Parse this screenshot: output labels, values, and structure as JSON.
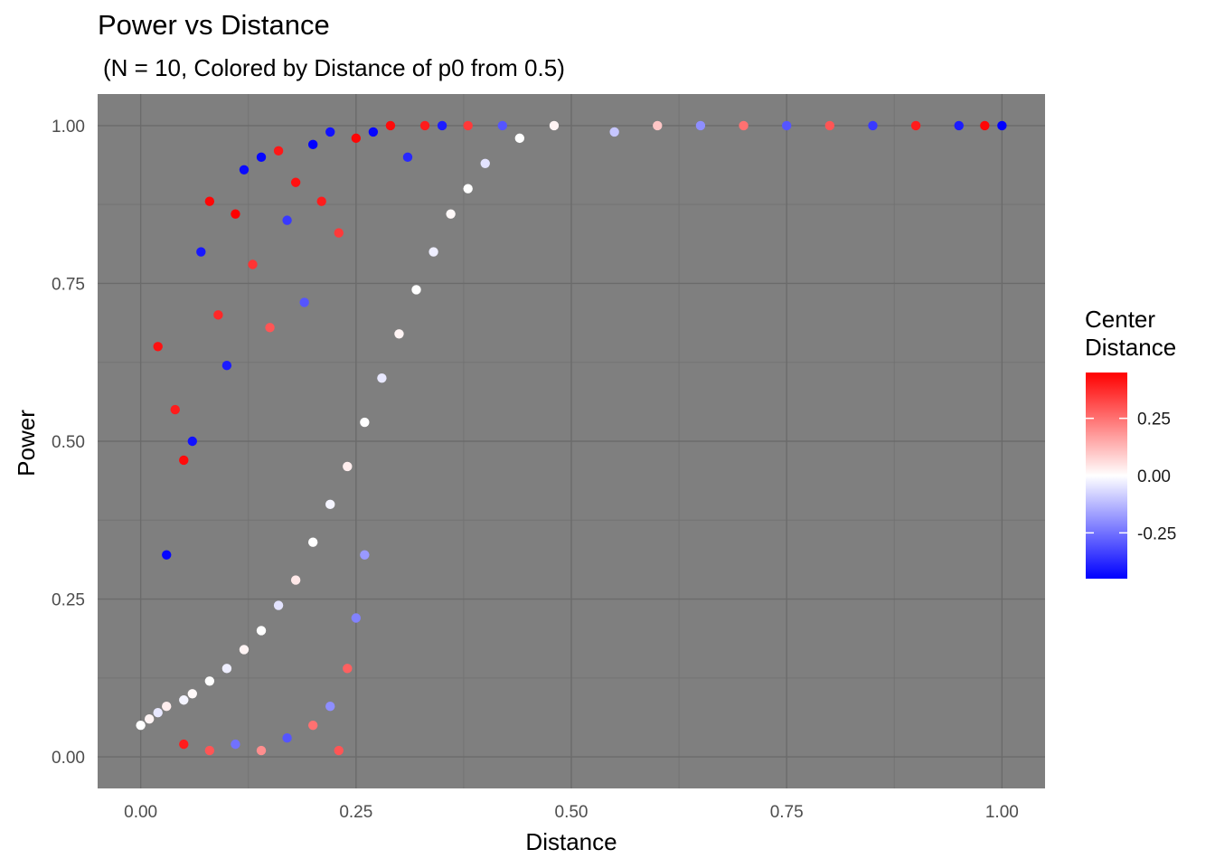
{
  "chart_data": {
    "type": "scatter",
    "title": "Power vs Distance",
    "subtitle": "(N = 10, Colored by Distance of p0 from 0.5)",
    "xlabel": "Distance",
    "ylabel": "Power",
    "xlim": [
      -0.05,
      1.05
    ],
    "ylim": [
      -0.05,
      1.05
    ],
    "x_ticks": [
      {
        "value": 0,
        "label": "0.00"
      },
      {
        "value": 0.25,
        "label": "0.25"
      },
      {
        "value": 0.5,
        "label": "0.50"
      },
      {
        "value": 0.75,
        "label": "0.75"
      },
      {
        "value": 1,
        "label": "1.00"
      }
    ],
    "y_ticks": [
      {
        "value": 0,
        "label": "0.00"
      },
      {
        "value": 0.25,
        "label": "0.25"
      },
      {
        "value": 0.5,
        "label": "0.50"
      },
      {
        "value": 0.75,
        "label": "0.75"
      },
      {
        "value": 1,
        "label": "1.00"
      }
    ],
    "grid": true,
    "panel_background": "#7f7f7f",
    "legend": {
      "title_lines": [
        "Center",
        "Distance"
      ],
      "position": "right",
      "range": [
        -0.45,
        0.45
      ],
      "ticks": [
        {
          "value": 0.25,
          "label": "0.25"
        },
        {
          "value": 0.0,
          "label": "0.00"
        },
        {
          "value": -0.25,
          "label": "-0.25"
        }
      ],
      "colors": {
        "low": "#0000ff",
        "mid": "#ffffff",
        "high": "#ff0000"
      }
    },
    "series": [
      {
        "color_variable": "center_distance",
        "points": [
          {
            "x": 0.0,
            "y": 0.05,
            "c": 0.0
          },
          {
            "x": 0.01,
            "y": 0.06,
            "c": 0.02
          },
          {
            "x": 0.02,
            "y": 0.07,
            "c": -0.04
          },
          {
            "x": 0.03,
            "y": 0.08,
            "c": 0.03
          },
          {
            "x": 0.05,
            "y": 0.09,
            "c": -0.02
          },
          {
            "x": 0.06,
            "y": 0.1,
            "c": 0.01
          },
          {
            "x": 0.08,
            "y": 0.12,
            "c": 0.0
          },
          {
            "x": 0.1,
            "y": 0.14,
            "c": -0.03
          },
          {
            "x": 0.12,
            "y": 0.17,
            "c": 0.02
          },
          {
            "x": 0.14,
            "y": 0.2,
            "c": 0.0
          },
          {
            "x": 0.16,
            "y": 0.24,
            "c": -0.05
          },
          {
            "x": 0.18,
            "y": 0.28,
            "c": 0.04
          },
          {
            "x": 0.2,
            "y": 0.34,
            "c": 0.0
          },
          {
            "x": 0.22,
            "y": 0.4,
            "c": -0.02
          },
          {
            "x": 0.24,
            "y": 0.46,
            "c": 0.03
          },
          {
            "x": 0.26,
            "y": 0.53,
            "c": 0.0
          },
          {
            "x": 0.28,
            "y": 0.6,
            "c": -0.04
          },
          {
            "x": 0.3,
            "y": 0.67,
            "c": 0.02
          },
          {
            "x": 0.32,
            "y": 0.74,
            "c": 0.0
          },
          {
            "x": 0.34,
            "y": 0.8,
            "c": -0.03
          },
          {
            "x": 0.36,
            "y": 0.86,
            "c": 0.01
          },
          {
            "x": 0.38,
            "y": 0.9,
            "c": 0.0
          },
          {
            "x": 0.4,
            "y": 0.94,
            "c": -0.05
          },
          {
            "x": 0.44,
            "y": 0.98,
            "c": 0.0
          },
          {
            "x": 0.48,
            "y": 1.0,
            "c": 0.02
          },
          {
            "x": 0.02,
            "y": 0.65,
            "c": 0.42
          },
          {
            "x": 0.03,
            "y": 0.32,
            "c": -0.44
          },
          {
            "x": 0.04,
            "y": 0.55,
            "c": 0.4
          },
          {
            "x": 0.05,
            "y": 0.47,
            "c": 0.43
          },
          {
            "x": 0.06,
            "y": 0.5,
            "c": -0.42
          },
          {
            "x": 0.07,
            "y": 0.8,
            "c": -0.41
          },
          {
            "x": 0.08,
            "y": 0.88,
            "c": 0.44
          },
          {
            "x": 0.09,
            "y": 0.7,
            "c": 0.38
          },
          {
            "x": 0.1,
            "y": 0.62,
            "c": -0.4
          },
          {
            "x": 0.11,
            "y": 0.86,
            "c": 0.45
          },
          {
            "x": 0.12,
            "y": 0.93,
            "c": -0.43
          },
          {
            "x": 0.13,
            "y": 0.78,
            "c": 0.36
          },
          {
            "x": 0.14,
            "y": 0.95,
            "c": -0.44
          },
          {
            "x": 0.15,
            "y": 0.68,
            "c": 0.3
          },
          {
            "x": 0.16,
            "y": 0.96,
            "c": 0.41
          },
          {
            "x": 0.17,
            "y": 0.85,
            "c": -0.35
          },
          {
            "x": 0.18,
            "y": 0.91,
            "c": 0.42
          },
          {
            "x": 0.19,
            "y": 0.72,
            "c": -0.3
          },
          {
            "x": 0.2,
            "y": 0.97,
            "c": -0.45
          },
          {
            "x": 0.21,
            "y": 0.88,
            "c": 0.4
          },
          {
            "x": 0.22,
            "y": 0.99,
            "c": -0.42
          },
          {
            "x": 0.23,
            "y": 0.83,
            "c": 0.35
          },
          {
            "x": 0.25,
            "y": 0.98,
            "c": 0.44
          },
          {
            "x": 0.27,
            "y": 0.99,
            "c": -0.44
          },
          {
            "x": 0.29,
            "y": 1.0,
            "c": 0.43
          },
          {
            "x": 0.31,
            "y": 0.95,
            "c": -0.38
          },
          {
            "x": 0.33,
            "y": 1.0,
            "c": 0.4
          },
          {
            "x": 0.35,
            "y": 1.0,
            "c": -0.4
          },
          {
            "x": 0.38,
            "y": 1.0,
            "c": 0.35
          },
          {
            "x": 0.42,
            "y": 1.0,
            "c": -0.3
          },
          {
            "x": 0.05,
            "y": 0.02,
            "c": 0.4
          },
          {
            "x": 0.08,
            "y": 0.01,
            "c": 0.3
          },
          {
            "x": 0.11,
            "y": 0.02,
            "c": -0.25
          },
          {
            "x": 0.14,
            "y": 0.01,
            "c": 0.2
          },
          {
            "x": 0.17,
            "y": 0.03,
            "c": -0.3
          },
          {
            "x": 0.2,
            "y": 0.05,
            "c": 0.25
          },
          {
            "x": 0.22,
            "y": 0.08,
            "c": -0.2
          },
          {
            "x": 0.24,
            "y": 0.14,
            "c": 0.28
          },
          {
            "x": 0.25,
            "y": 0.22,
            "c": -0.22
          },
          {
            "x": 0.26,
            "y": 0.32,
            "c": -0.18
          },
          {
            "x": 0.23,
            "y": 0.01,
            "c": 0.3
          },
          {
            "x": 0.55,
            "y": 0.99,
            "c": -0.1
          },
          {
            "x": 0.6,
            "y": 1.0,
            "c": 0.1
          },
          {
            "x": 0.65,
            "y": 1.0,
            "c": -0.2
          },
          {
            "x": 0.7,
            "y": 1.0,
            "c": 0.25
          },
          {
            "x": 0.75,
            "y": 1.0,
            "c": -0.3
          },
          {
            "x": 0.8,
            "y": 1.0,
            "c": 0.3
          },
          {
            "x": 0.85,
            "y": 1.0,
            "c": -0.35
          },
          {
            "x": 0.9,
            "y": 1.0,
            "c": 0.4
          },
          {
            "x": 0.95,
            "y": 1.0,
            "c": -0.4
          },
          {
            "x": 0.98,
            "y": 1.0,
            "c": 0.44
          },
          {
            "x": 1.0,
            "y": 1.0,
            "c": -0.45
          }
        ]
      }
    ]
  }
}
